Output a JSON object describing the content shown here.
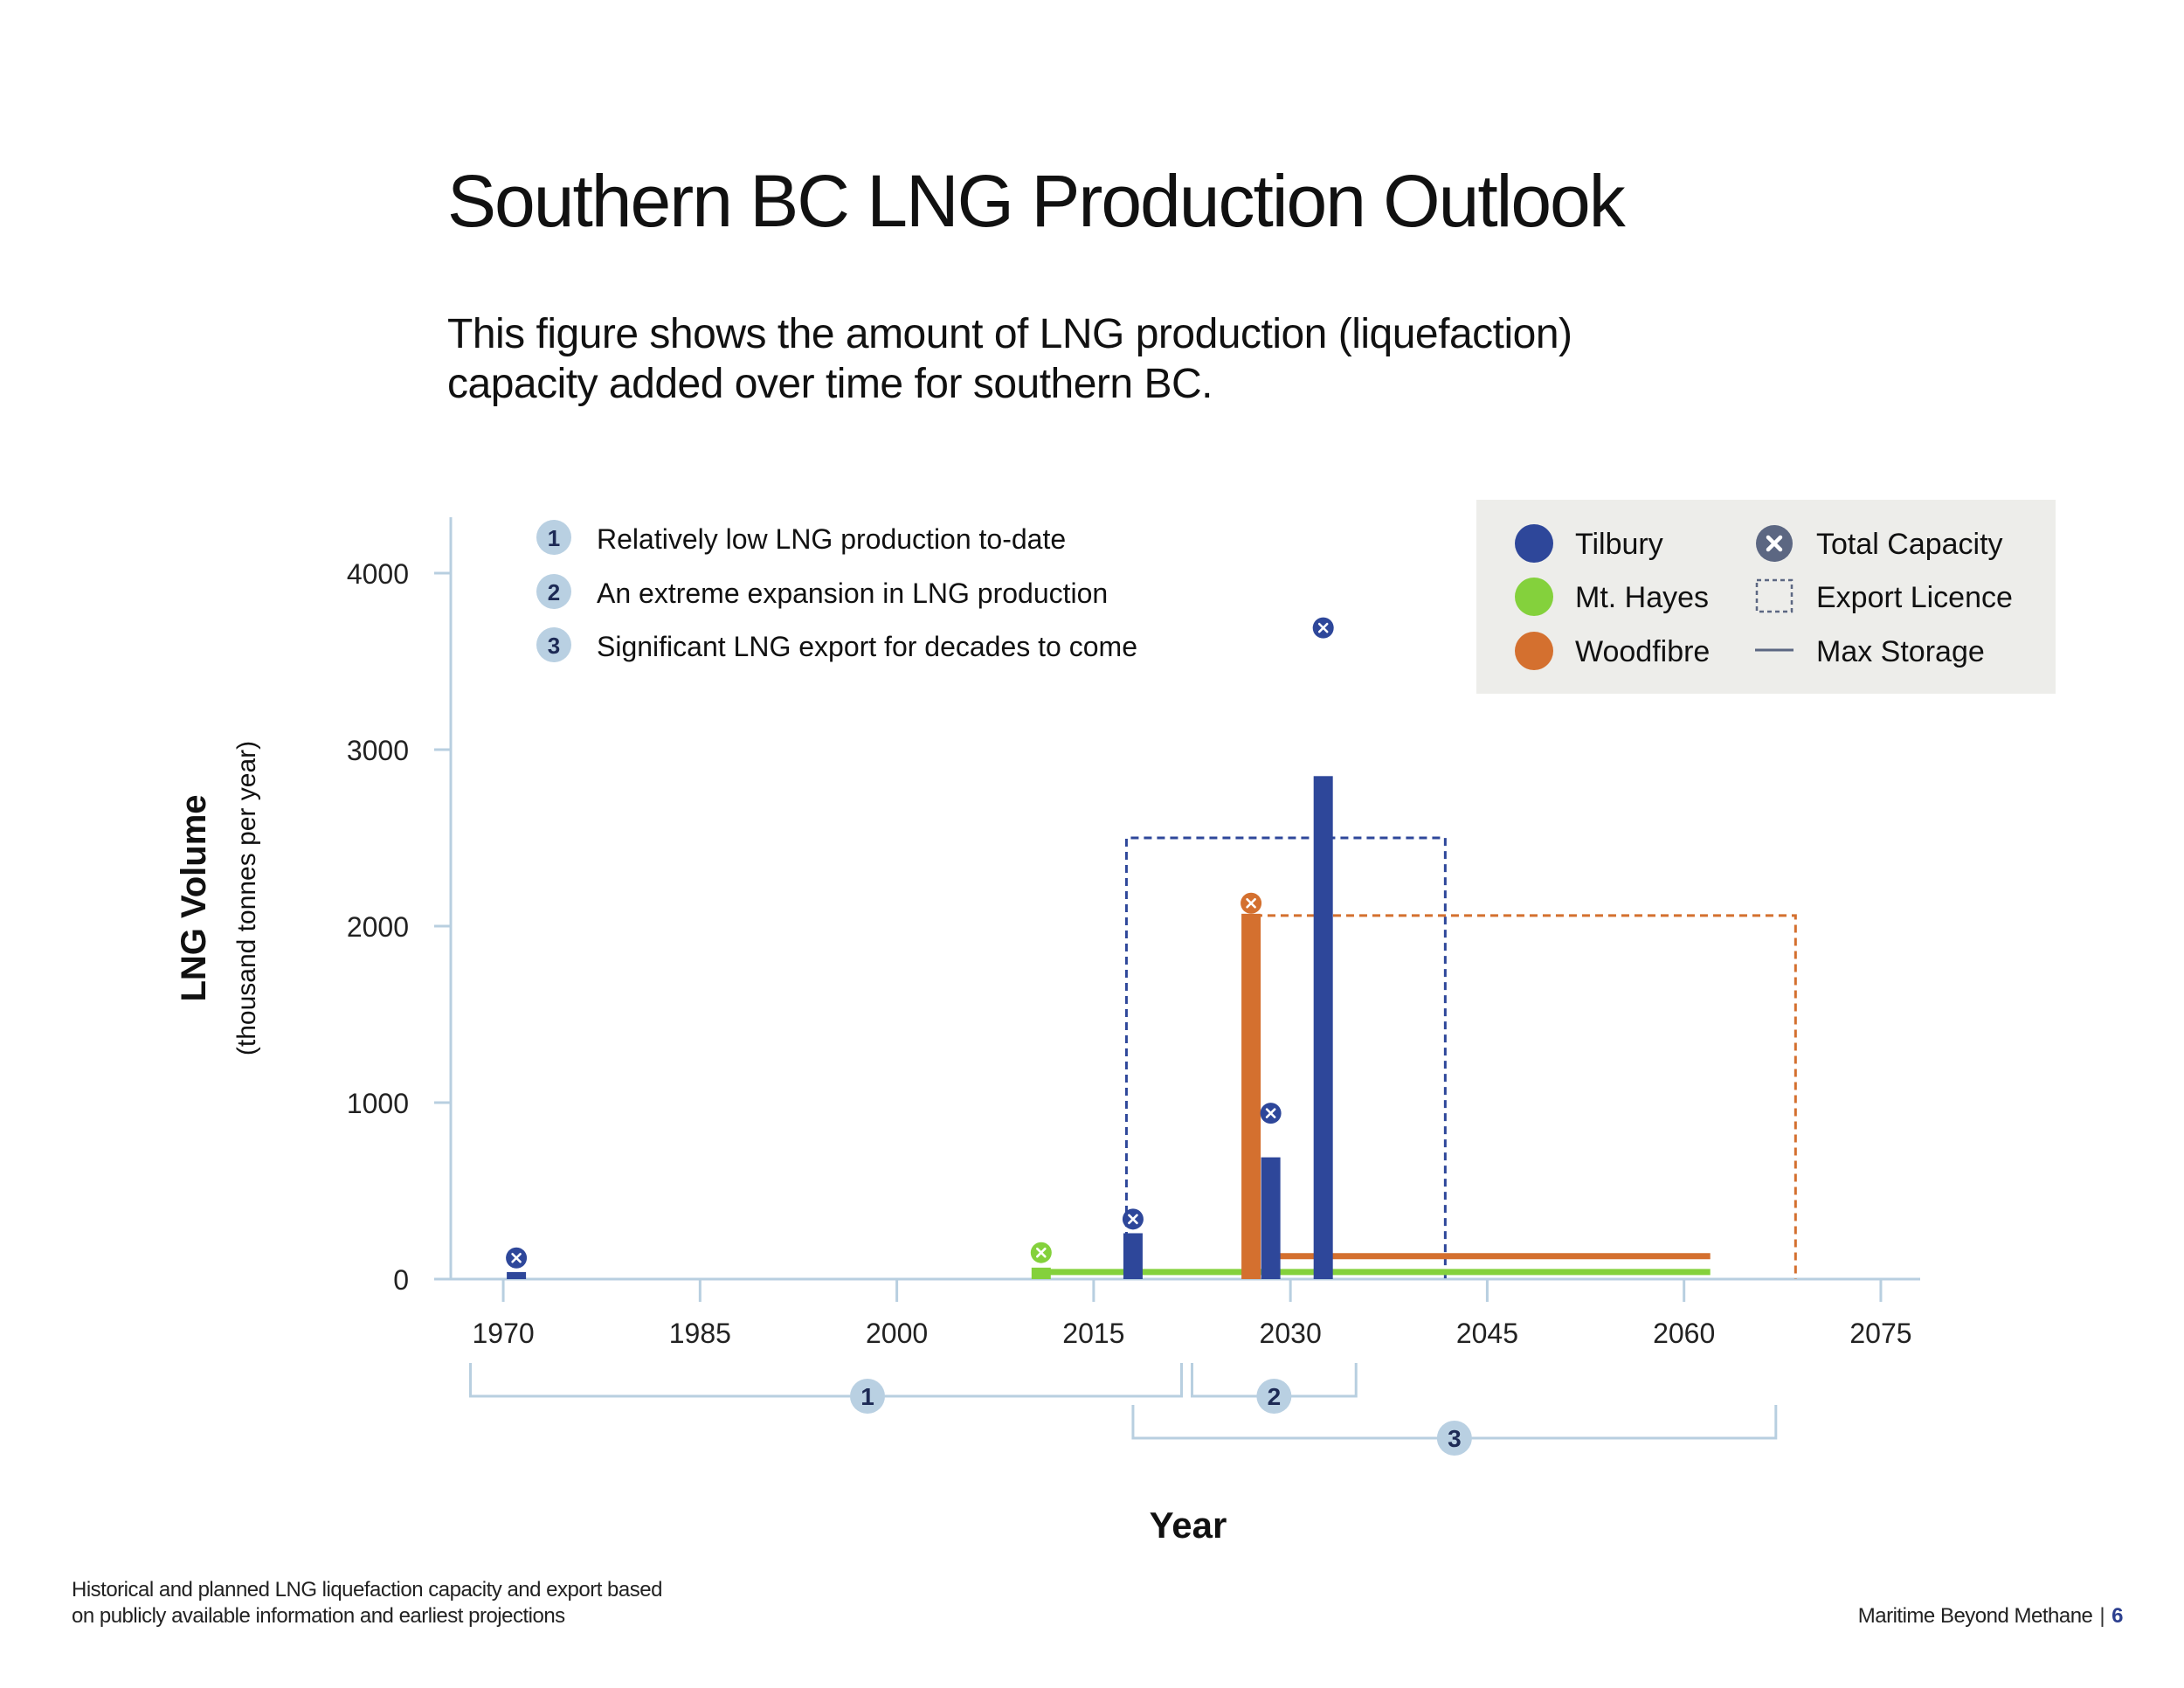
{
  "page": {
    "title": "Southern BC LNG Production Outlook",
    "subtitle_line1": "This figure shows the amount of LNG production (liquefaction)",
    "subtitle_line2": "capacity added over time for southern BC.",
    "footnote_line1": "Historical and planned LNG liquefaction capacity and export based",
    "footnote_line2": "on publicly available information and earliest projections",
    "brand": "Maritime Beyond Methane",
    "page_number": "6"
  },
  "colors": {
    "tilbury": "#2e479a",
    "mt_hayes": "#84d13c",
    "woodfibre": "#d4702f",
    "axis": "#b8cfe0",
    "legend_bg": "#ededea",
    "marker_badge": "#b9d0e2",
    "total_capacity_icon": "#5c6782"
  },
  "chart_data": {
    "type": "bar",
    "xlabel": "Year",
    "ylabel": "LNG Volume",
    "ylabel_sub": "(thousand tonnes per year)",
    "xlim": [
      1966,
      2078
    ],
    "ylim": [
      0,
      4000
    ],
    "x_ticks": [
      1970,
      1985,
      2000,
      2015,
      2030,
      2045,
      2060,
      2075
    ],
    "y_ticks": [
      0,
      1000,
      2000,
      3000,
      4000
    ],
    "grid": false,
    "legend_position": "top-right",
    "legend": [
      {
        "label": "Tilbury",
        "kind": "dot",
        "color": "#2e479a"
      },
      {
        "label": "Mt. Hayes",
        "kind": "dot",
        "color": "#84d13c"
      },
      {
        "label": "Woodfibre",
        "kind": "dot",
        "color": "#d4702f"
      },
      {
        "label": "Total Capacity",
        "kind": "x-icon"
      },
      {
        "label": "Export Licence",
        "kind": "dashed-box"
      },
      {
        "label": "Max Storage",
        "kind": "line"
      }
    ],
    "bars": [
      {
        "series": "Tilbury",
        "year": 1971,
        "value": 40
      },
      {
        "series": "Mt. Hayes",
        "year": 2011,
        "value": 65
      },
      {
        "series": "Tilbury",
        "year": 2018,
        "value": 260
      },
      {
        "series": "Woodfibre",
        "year": 2027,
        "value": 2070
      },
      {
        "series": "Tilbury",
        "year": 2028.5,
        "value": 690
      },
      {
        "series": "Tilbury",
        "year": 2032.5,
        "value": 2850
      }
    ],
    "total_capacity": [
      {
        "series": "Tilbury",
        "year": 1971,
        "value": 120
      },
      {
        "series": "Mt. Hayes",
        "year": 2011,
        "value": 150
      },
      {
        "series": "Tilbury",
        "year": 2018,
        "value": 340
      },
      {
        "series": "Woodfibre",
        "year": 2027,
        "value": 2130
      },
      {
        "series": "Tilbury",
        "year": 2028.5,
        "value": 940
      },
      {
        "series": "Tilbury",
        "year": 2032.5,
        "value": 3690
      }
    ],
    "export_licences": [
      {
        "series": "Tilbury",
        "start": 2017.5,
        "end": 2041.8,
        "value": 2500
      },
      {
        "series": "Woodfibre",
        "start": 2027,
        "end": 2068.5,
        "value": 2060
      }
    ],
    "max_storage": [
      {
        "series": "Mt. Hayes",
        "start": 2011,
        "end": 2062,
        "value": 40
      },
      {
        "series": "Woodfibre",
        "start": 2028,
        "end": 2062,
        "value": 130
      }
    ],
    "annotations": [
      {
        "number": "1",
        "text": "Relatively low LNG production to-date",
        "range": [
          1967.5,
          2021.7
        ]
      },
      {
        "number": "2",
        "text": "An extreme expansion in LNG production",
        "range": [
          2022.5,
          2035
        ]
      },
      {
        "number": "3",
        "text": "Significant LNG export for decades to come",
        "range": [
          2018,
          2067
        ]
      }
    ]
  }
}
